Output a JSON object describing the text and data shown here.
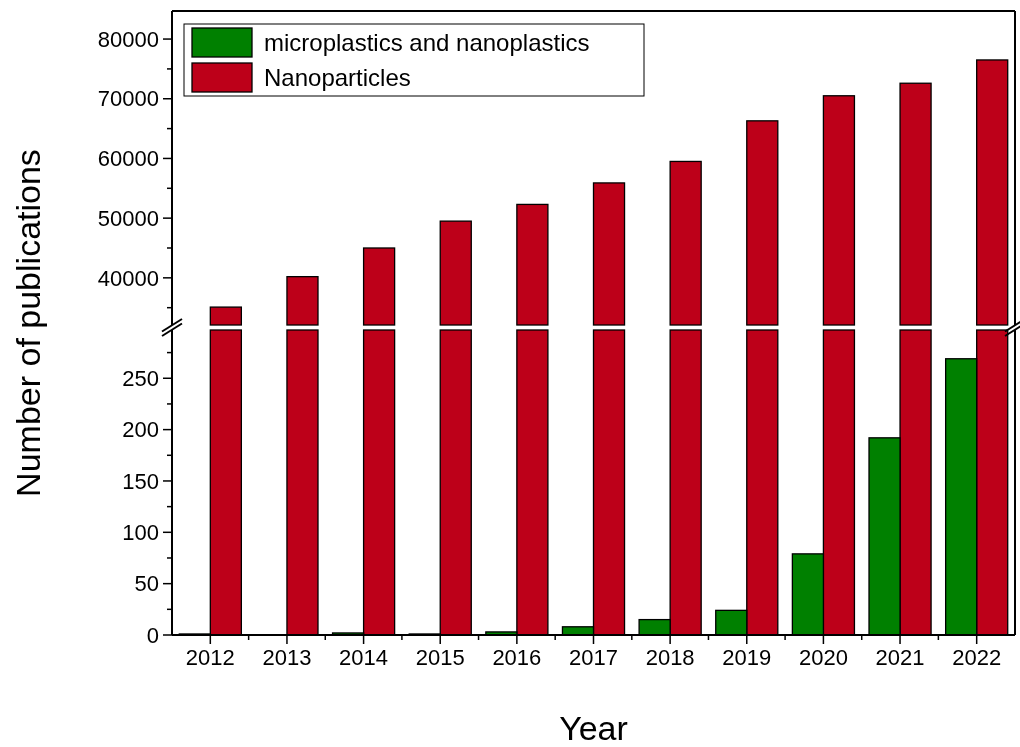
{
  "chart_data": [
    {
      "type": "bar",
      "categories": [
        "2012",
        "2013",
        "2014",
        "2015",
        "2016",
        "2017",
        "2018",
        "2019",
        "2020",
        "2021",
        "2022"
      ],
      "tick_labels": "y",
      "legend": "top left",
      "ylim": [
        32100,
        84700
      ],
      "yticks": [
        {
          "value": 35000,
          "label": null
        },
        40000,
        {
          "value": 45000,
          "label": null
        },
        50000,
        {
          "value": 55000,
          "label": null
        },
        60000,
        {
          "value": 65000,
          "label": null
        },
        70000,
        {
          "value": 75000,
          "label": null
        },
        80000
      ],
      "series": [
        {
          "name": "microplastics and nanoplastics",
          "color": "#008000",
          "values": [
            null,
            null,
            null,
            null,
            null,
            null,
            null,
            null,
            null,
            null,
            null
          ]
        },
        {
          "name": "Nanoparticles",
          "color": "#bd0019",
          "values": [
            35100,
            40200,
            45000,
            49500,
            52300,
            55900,
            59500,
            66300,
            70500,
            72600,
            76500
          ]
        }
      ]
    },
    {
      "type": "bar",
      "categories": [
        "2012",
        "2013",
        "2014",
        "2015",
        "2016",
        "2017",
        "2018",
        "2019",
        "2020",
        "2021",
        "2022"
      ],
      "xlabel": "Year",
      "ylabel": "Number of publications",
      "ylim": [
        0,
        297
      ],
      "yticks": [
        0,
        {
          "value": 25,
          "label": null
        },
        50,
        {
          "value": 75,
          "label": null
        },
        100,
        {
          "value": 125,
          "label": null
        },
        150,
        {
          "value": 175,
          "label": null
        },
        200,
        {
          "value": 225,
          "label": null
        },
        250,
        {
          "value": 275,
          "label": null
        }
      ],
      "series": [
        {
          "color": "#008000",
          "values": [
            1,
            0,
            2,
            1,
            3,
            8,
            15,
            24,
            79,
            192,
            269
          ]
        }
      ]
    }
  ]
}
